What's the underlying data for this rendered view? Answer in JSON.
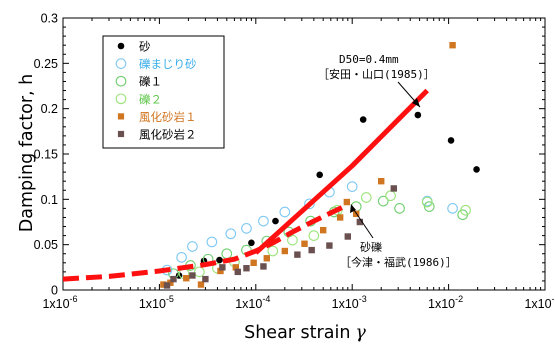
{
  "chart_data": {
    "type": "scatter",
    "xlabel": "Shear strain",
    "xlabel_symbol": "γ",
    "ylabel": "Damping factor, h",
    "xscale": "log",
    "xlim": [
      1e-06,
      0.1
    ],
    "ylim": [
      0,
      0.3
    ],
    "x_ticks": [
      1e-06,
      1e-05,
      0.0001,
      0.001,
      0.01,
      0.1
    ],
    "x_tick_labels": [
      "1x10",
      "1x10",
      "1x10",
      "1x10",
      "1x10",
      "1x10"
    ],
    "x_tick_exponents": [
      "-6",
      "-5",
      "-4",
      "-3",
      "-2",
      "-1"
    ],
    "y_ticks": [
      0,
      0.05,
      0.1,
      0.15,
      0.2,
      0.25,
      0.3
    ],
    "y_tick_labels": [
      "0",
      "0.05",
      "0.1",
      "0.15",
      "0.2",
      "0.25",
      "0.3"
    ],
    "legend_position": "top-left",
    "series": [
      {
        "name": "砂",
        "marker": "filled-circle",
        "color": "#000000",
        "text_color": "#000000",
        "points": [
          [
            1.6e-05,
            0.016
          ],
          [
            2.9e-05,
            0.032
          ],
          [
            4.2e-05,
            0.033
          ],
          [
            9e-05,
            0.052
          ],
          [
            0.00016,
            0.076
          ],
          [
            0.00046,
            0.127
          ],
          [
            0.0013,
            0.188
          ],
          [
            0.0048,
            0.193
          ],
          [
            0.0106,
            0.165
          ],
          [
            0.0195,
            0.133
          ]
        ]
      },
      {
        "name": "礫まじり砂",
        "marker": "open-circle",
        "color": "#7ec8f2",
        "text_color": "#3aaee8",
        "points": [
          [
            1.2e-05,
            0.022
          ],
          [
            1.7e-05,
            0.036
          ],
          [
            2.2e-05,
            0.048
          ],
          [
            3.5e-05,
            0.053
          ],
          [
            5.5e-05,
            0.062
          ],
          [
            8e-05,
            0.068
          ],
          [
            0.00012,
            0.076
          ],
          [
            0.0002,
            0.086
          ],
          [
            0.00036,
            0.095
          ],
          [
            0.00058,
            0.108
          ],
          [
            0.001,
            0.114
          ],
          [
            0.006,
            0.098
          ],
          [
            0.011,
            0.09
          ]
        ]
      },
      {
        "name": "礫１",
        "marker": "open-circle",
        "color": "#6fcf6f",
        "text_color": "#000000",
        "points": [
          [
            1.4e-05,
            0.018
          ],
          [
            2.1e-05,
            0.027
          ],
          [
            3.2e-05,
            0.034
          ],
          [
            5e-05,
            0.04
          ],
          [
            8e-05,
            0.044
          ],
          [
            0.00013,
            0.054
          ],
          [
            0.00022,
            0.064
          ],
          [
            0.00037,
            0.076
          ],
          [
            0.00065,
            0.086
          ],
          [
            0.0011,
            0.092
          ],
          [
            0.0021,
            0.098
          ],
          [
            0.0031,
            0.09
          ],
          [
            0.0063,
            0.092
          ],
          [
            0.014,
            0.083
          ]
        ]
      },
      {
        "name": "礫２",
        "marker": "open-circle",
        "color": "#9be37a",
        "text_color": "#5ec64a",
        "points": [
          [
            1.8e-05,
            0.018
          ],
          [
            2.6e-05,
            0.02
          ],
          [
            4e-05,
            0.024
          ],
          [
            6e-05,
            0.031
          ],
          [
            0.00015,
            0.043
          ],
          [
            0.00024,
            0.055
          ],
          [
            0.0004,
            0.06
          ],
          [
            0.0007,
            0.088
          ],
          [
            0.0014,
            0.102
          ],
          [
            0.0025,
            0.104
          ],
          [
            0.006,
            0.097
          ],
          [
            0.015,
            0.088
          ]
        ]
      },
      {
        "name": "風化砂岩１",
        "marker": "filled-square",
        "color": "#d07520",
        "text_color": "#d07520",
        "points": [
          [
            1.1e-05,
            0.006
          ],
          [
            1.3e-05,
            0.008
          ],
          [
            1.9e-05,
            0.013
          ],
          [
            2.7e-05,
            0.006
          ],
          [
            4.3e-05,
            0.021
          ],
          [
            6.2e-05,
            0.025
          ],
          [
            9.5e-05,
            0.03
          ],
          [
            0.00013,
            0.035
          ],
          [
            0.0002,
            0.043
          ],
          [
            0.00032,
            0.051
          ],
          [
            0.0005,
            0.066
          ],
          [
            0.00075,
            0.08
          ],
          [
            0.00088,
            0.097
          ],
          [
            0.0011,
            0.084
          ],
          [
            0.002,
            0.12
          ],
          [
            0.011,
            0.27
          ]
        ]
      },
      {
        "name": "風化砂岩２",
        "marker": "filled-square",
        "color": "#6b5050",
        "text_color": "#000000",
        "points": [
          [
            1.2e-05,
            0.005
          ],
          [
            1.4e-05,
            0.012
          ],
          [
            2.2e-05,
            0.016
          ],
          [
            3e-05,
            0.012
          ],
          [
            4.5e-05,
            0.025
          ],
          [
            6.5e-05,
            0.02
          ],
          [
            8e-05,
            0.024
          ],
          [
            0.00012,
            0.026
          ],
          [
            0.00027,
            0.039
          ],
          [
            0.00038,
            0.044
          ],
          [
            0.00058,
            0.049
          ],
          [
            0.0009,
            0.059
          ],
          [
            0.0012,
            0.075
          ],
          [
            0.0027,
            0.112
          ]
        ]
      }
    ],
    "curves": [
      {
        "label": "D50=0.4mm\n［安田・山口(1985)］",
        "style": "solid",
        "color": "#ff1010",
        "points": [
          [
            0.0001,
            0.041
          ],
          [
            0.001,
            0.137
          ],
          [
            0.006,
            0.22
          ]
        ]
      },
      {
        "label": "砂礫\n［今津・福武(1986)］",
        "style": "dashed",
        "color": "#ff1010",
        "points": [
          [
            1e-06,
            0.012
          ],
          [
            3e-06,
            0.015
          ],
          [
            1e-05,
            0.021
          ],
          [
            3e-05,
            0.028
          ],
          [
            6e-05,
            0.034
          ],
          [
            0.0001,
            0.043
          ],
          [
            0.00015,
            0.052
          ],
          [
            0.00025,
            0.065
          ],
          [
            0.0004,
            0.076
          ],
          [
            0.0006,
            0.085
          ],
          [
            0.0009,
            0.094
          ]
        ]
      }
    ],
    "annotations": [
      {
        "lines": [
          "D50=0.4mm",
          "［安田・山口(1985)］"
        ]
      },
      {
        "lines": [
          "砂礫",
          "［今津・福武(1986)］"
        ]
      }
    ]
  }
}
